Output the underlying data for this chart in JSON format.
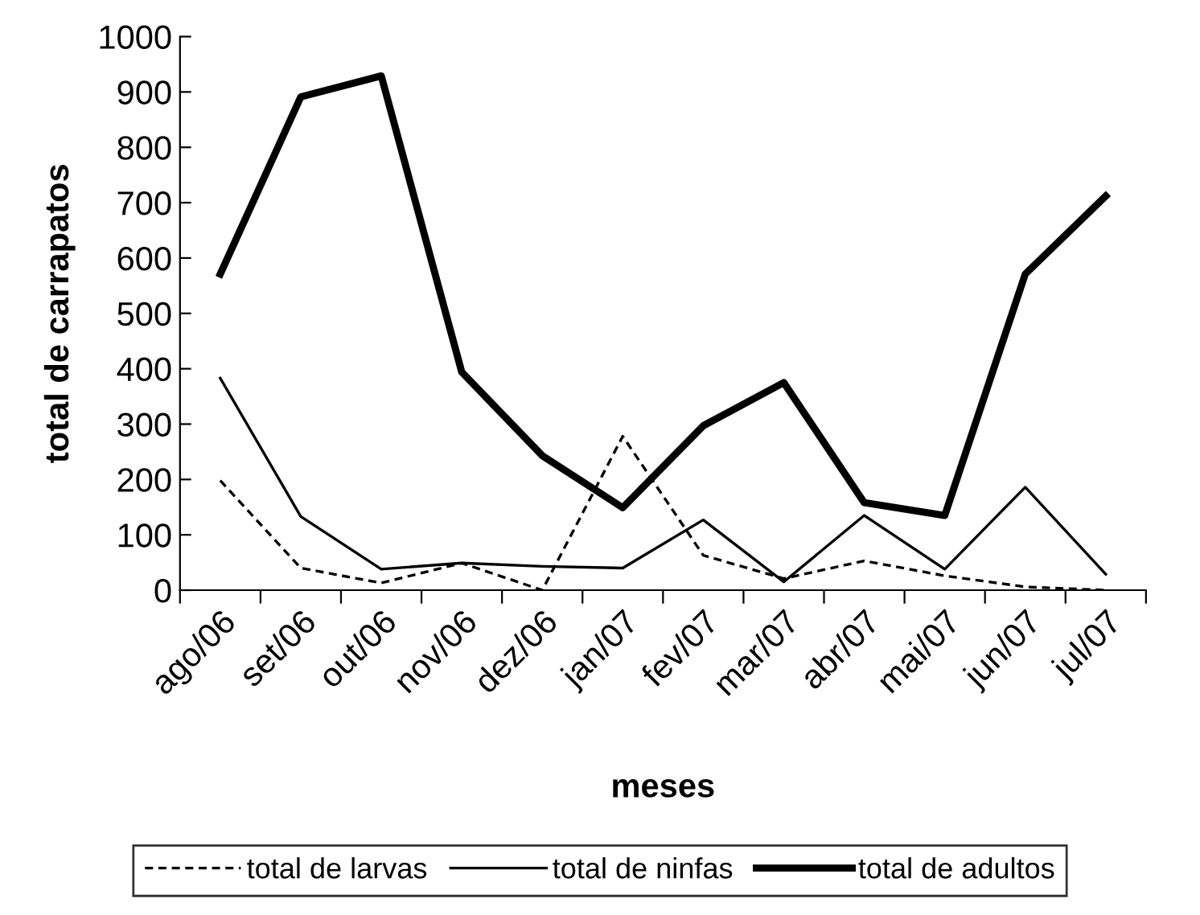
{
  "chart_data": {
    "type": "line",
    "xlabel": "meses",
    "ylabel": "total de carrapatos",
    "categories": [
      "ago/06",
      "set/06",
      "out/06",
      "nov/06",
      "dez/06",
      "jan/07",
      "fev/07",
      "mar/07",
      "abr/07",
      "mai/07",
      "jun/07",
      "jul/07"
    ],
    "ylim": [
      0,
      1000
    ],
    "yticks": [
      0,
      100,
      200,
      300,
      400,
      500,
      600,
      700,
      800,
      900,
      1000
    ],
    "grid": false,
    "legend": "bottom",
    "marker": "none",
    "series": [
      {
        "name": "total de larvas",
        "color": "#000000",
        "line_style": "dashed",
        "values": [
          198,
          40,
          13,
          49,
          0,
          278,
          63,
          21,
          53,
          26,
          6,
          0
        ]
      },
      {
        "name": "total de ninfas",
        "color": "#000000",
        "line_style": "solid",
        "values": [
          383,
          133,
          38,
          49,
          43,
          40,
          127,
          15,
          135,
          38,
          186,
          29
        ]
      },
      {
        "name": "total de adultos",
        "color": "#000000",
        "line_style": "solid",
        "values": [
          571,
          891,
          929,
          394,
          243,
          149,
          297,
          375,
          158,
          135,
          571,
          712
        ]
      }
    ]
  }
}
